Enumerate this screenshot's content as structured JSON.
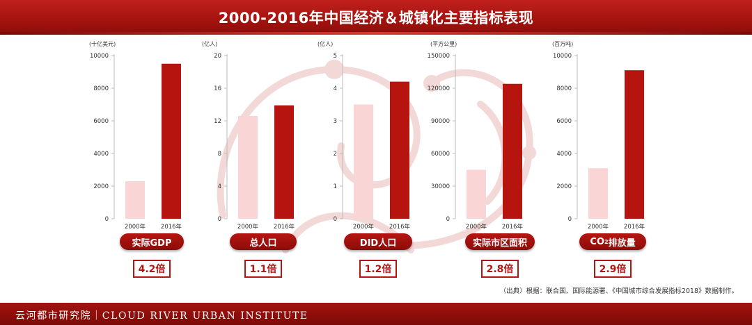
{
  "header": {
    "title": "2000-2016年中国经济＆城镇化主要指标表现"
  },
  "colors": {
    "bar_2000": "#f9d5d6",
    "bar_2016": "#b5140f",
    "accent": "#a3130f"
  },
  "chart_data": [
    {
      "type": "bar",
      "unit": "(十亿美元)",
      "categories": [
        "2000年",
        "2016年"
      ],
      "values": [
        2300,
        9500
      ],
      "ylim": [
        0,
        10000
      ],
      "yticks": [
        0,
        2000,
        4000,
        6000,
        8000,
        10000
      ],
      "label": "实际GDP",
      "ratio": "4.2倍"
    },
    {
      "type": "bar",
      "unit": "(亿人)",
      "categories": [
        "2000年",
        "2016年"
      ],
      "values": [
        12.6,
        13.9
      ],
      "ylim": [
        0,
        20
      ],
      "yticks": [
        0,
        4,
        8,
        12,
        16,
        20
      ],
      "label": "总人口",
      "ratio": "1.1倍"
    },
    {
      "type": "bar",
      "unit": "(亿人)",
      "categories": [
        "2000年",
        "2016年"
      ],
      "values": [
        3.5,
        4.2
      ],
      "ylim": [
        0,
        5
      ],
      "yticks": [
        0,
        1,
        2,
        3,
        4,
        5
      ],
      "label": "DID人口",
      "ratio": "1.2倍"
    },
    {
      "type": "bar",
      "unit": "(平方公里)",
      "categories": [
        "2000年",
        "2016年"
      ],
      "values": [
        45000,
        124000
      ],
      "ylim": [
        0,
        150000
      ],
      "yticks": [
        0,
        30000,
        60000,
        90000,
        120000,
        150000
      ],
      "label": "实际市区面积",
      "ratio": "2.8倍"
    },
    {
      "type": "bar",
      "unit": "(百万吨)",
      "categories": [
        "2000年",
        "2016年"
      ],
      "values": [
        3100,
        9100
      ],
      "ylim": [
        0,
        10000
      ],
      "yticks": [
        0,
        2000,
        4000,
        6000,
        8000,
        10000
      ],
      "label_main": "CO",
      "label_sub": "2",
      "label_rest": "排放量",
      "ratio": "2.9倍"
    }
  ],
  "source": "（出典）根据：联合国、国际能源署、《中国城市综合发展指标2018》数据制作。",
  "footer": {
    "text": "云河都市研究院｜CLOUD RIVER URBAN INSTITUTE"
  }
}
